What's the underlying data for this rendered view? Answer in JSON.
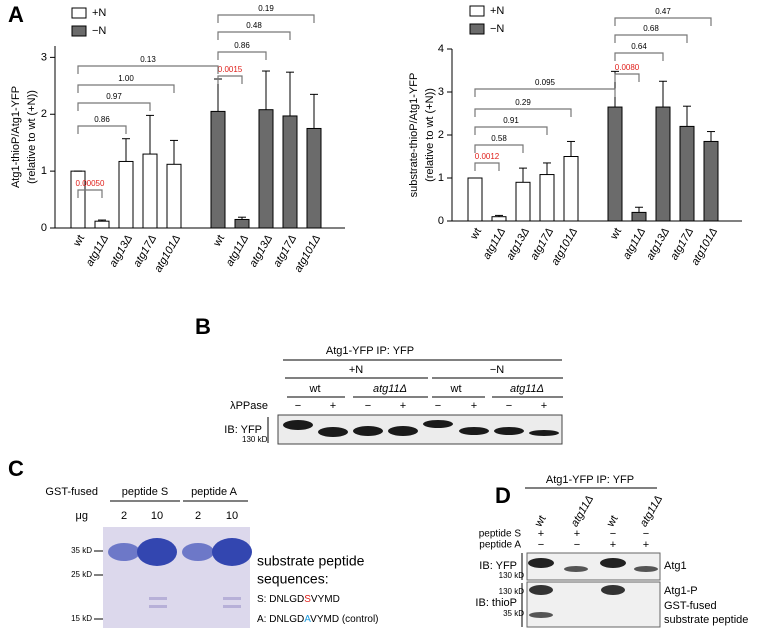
{
  "panel_labels": [
    "A",
    "B",
    "C",
    "D"
  ],
  "chart_data": [
    {
      "type": "bar",
      "ylabel": [
        "Atg1-thioP/Atg1-YFP",
        "(relative to wt (+N))"
      ],
      "categories": [
        "wt",
        "atg11Δ",
        "atg13Δ",
        "atg17Δ",
        "atg101Δ"
      ],
      "series": [
        {
          "name": "+N",
          "color": "#ffffff",
          "values": [
            1.0,
            0.12,
            1.17,
            1.3,
            1.12
          ],
          "errors": [
            0,
            0.02,
            0.4,
            0.68,
            0.42
          ],
          "p_values": [
            null,
            "0.00050",
            "0.86",
            "0.97",
            "1.00"
          ],
          "p_value_colors": [
            null,
            "#e0201b",
            "#000000",
            "#000000",
            "#000000"
          ]
        },
        {
          "name": "−N",
          "color": "#6b6b6b",
          "values": [
            2.05,
            0.15,
            2.08,
            1.97,
            1.75
          ],
          "errors": [
            0.57,
            0.04,
            0.68,
            0.77,
            0.6
          ],
          "p_values": [
            null,
            "0.0015",
            "0.86",
            "0.48",
            "0.19"
          ],
          "p_value_colors": [
            null,
            "#e0201b",
            "#000000",
            "#000000",
            "#000000"
          ]
        }
      ],
      "p_between": "0.13",
      "p_between_color": "#000000",
      "ylim": [
        0,
        3.2
      ],
      "yticks": [
        0,
        1,
        2,
        3
      ]
    },
    {
      "type": "bar",
      "ylabel": [
        "substrate-thioP/Atg1-YFP",
        "(relative to wt (+N))"
      ],
      "categories": [
        "wt",
        "atg11Δ",
        "atg13Δ",
        "atg17Δ",
        "atg101Δ"
      ],
      "series": [
        {
          "name": "+N",
          "color": "#ffffff",
          "values": [
            1.0,
            0.1,
            0.9,
            1.08,
            1.5
          ],
          "errors": [
            0,
            0.03,
            0.33,
            0.27,
            0.35
          ],
          "p_values": [
            null,
            "0.0012",
            "0.58",
            "0.91",
            "0.29"
          ],
          "p_value_colors": [
            null,
            "#e0201b",
            "#000000",
            "#000000",
            "#000000"
          ]
        },
        {
          "name": "−N",
          "color": "#6b6b6b",
          "values": [
            2.65,
            0.2,
            2.65,
            2.2,
            1.85
          ],
          "errors": [
            0.83,
            0.12,
            0.6,
            0.47,
            0.23
          ],
          "p_values": [
            null,
            "0.0080",
            "0.64",
            "0.68",
            "0.47"
          ],
          "p_value_colors": [
            null,
            "#e0201b",
            "#000000",
            "#000000",
            "#000000"
          ]
        }
      ],
      "p_between": "0.095",
      "p_between_color": "#000000",
      "ylim": [
        0,
        4
      ],
      "yticks": [
        0,
        1,
        2,
        3,
        4
      ]
    }
  ],
  "panel_b": {
    "header": "Atg1-YFP  IP: YFP",
    "conditions": [
      "+N",
      "−N"
    ],
    "strains": [
      "wt",
      "atg11Δ",
      "wt",
      "atg11Δ"
    ],
    "treatment_label": "λPPase",
    "treatment": [
      "−",
      "+",
      "−",
      "+",
      "−",
      "+",
      "−",
      "+"
    ],
    "blot_label": "IB: YFP",
    "marker": "130 kD"
  },
  "panel_c": {
    "row_label": "GST-fused",
    "peptides": [
      "peptide S",
      "peptide A"
    ],
    "amount_label": "μg",
    "amounts": [
      2,
      10,
      2,
      10
    ],
    "markers": [
      "35 kD",
      "25 kD",
      "15 kD"
    ],
    "caption": [
      "substrate peptide",
      "sequences:"
    ],
    "sequences": [
      {
        "prefix": "S: DNLGD",
        "residue": "S",
        "suffix": "VYMD",
        "color": "#e0201b"
      },
      {
        "prefix": "A: DNLGD",
        "residue": "A",
        "suffix": "VYMD (control)",
        "color": "#1a9be0"
      }
    ]
  },
  "panel_d": {
    "header": "Atg1-YFP IP: YFP",
    "strains": [
      "wt",
      "atg11Δ",
      "wt",
      "atg11Δ"
    ],
    "rows": [
      {
        "label": "peptide S",
        "signs": [
          "+",
          "+",
          "−",
          "−"
        ]
      },
      {
        "label": "peptide A",
        "signs": [
          "−",
          "−",
          "+",
          "+"
        ]
      }
    ],
    "blots": [
      {
        "label": "IB: YFP",
        "markers": [
          "130 kD"
        ],
        "bands": [
          "Atg1"
        ]
      },
      {
        "label": "IB: thioP",
        "markers": [
          "130 kD",
          "35 kD"
        ],
        "bands": [
          "Atg1-P",
          "GST-fused",
          "substrate peptide"
        ]
      }
    ]
  }
}
